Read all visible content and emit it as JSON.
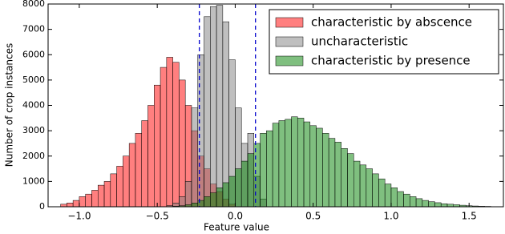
{
  "chart_data": {
    "type": "histogram",
    "xlabel": "Feature value",
    "ylabel": "Number of crop instances",
    "xlim": [
      -1.2,
      1.72
    ],
    "ylim": [
      0,
      8000
    ],
    "xticks": [
      {
        "value": -1.0,
        "label": "−1.0"
      },
      {
        "value": -0.5,
        "label": "−0.5"
      },
      {
        "value": 0.0,
        "label": "0.0"
      },
      {
        "value": 0.5,
        "label": "0.5"
      },
      {
        "value": 1.0,
        "label": "1.0"
      },
      {
        "value": 1.5,
        "label": "1.5"
      }
    ],
    "yticks": [
      0,
      1000,
      2000,
      3000,
      4000,
      5000,
      6000,
      7000,
      8000
    ],
    "alpha": 0.5,
    "legend": "upper right",
    "vlines": [
      -0.23,
      0.13
    ],
    "vline_color": "#0000cc",
    "series": [
      {
        "name": "characteristic by abscence",
        "color": "#ff0000",
        "bins": [
          -1.12,
          -1.08,
          -1.04,
          -1.0,
          -0.96,
          -0.92,
          -0.88,
          -0.84,
          -0.8,
          -0.76,
          -0.72,
          -0.68,
          -0.64,
          -0.6,
          -0.56,
          -0.52,
          -0.48,
          -0.44,
          -0.4,
          -0.36,
          -0.32,
          -0.28,
          -0.24,
          -0.2,
          -0.16,
          -0.12,
          -0.08,
          -0.04,
          0.0
        ],
        "values": [
          100,
          150,
          250,
          400,
          500,
          650,
          850,
          1000,
          1300,
          1600,
          2000,
          2500,
          2900,
          3400,
          4000,
          4800,
          5500,
          5900,
          5700,
          5000,
          4000,
          3000,
          2000,
          1500,
          900,
          600,
          300,
          100
        ]
      },
      {
        "name": "uncharacteristic",
        "color": "#808080",
        "bins": [
          -0.44,
          -0.4,
          -0.36,
          -0.32,
          -0.28,
          -0.24,
          -0.2,
          -0.16,
          -0.12,
          -0.08,
          -0.04,
          0.0,
          0.04,
          0.08,
          0.12,
          0.16,
          0.2
        ],
        "values": [
          50,
          150,
          400,
          1000,
          3900,
          6000,
          7500,
          7900,
          7950,
          7300,
          5800,
          3900,
          2500,
          2900,
          1200,
          300
        ]
      },
      {
        "name": "characteristic by presence",
        "color": "#008000",
        "bins": [
          -0.4,
          -0.36,
          -0.32,
          -0.28,
          -0.24,
          -0.2,
          -0.16,
          -0.12,
          -0.08,
          -0.04,
          0.0,
          0.04,
          0.08,
          0.12,
          0.16,
          0.2,
          0.24,
          0.28,
          0.32,
          0.36,
          0.4,
          0.44,
          0.48,
          0.52,
          0.56,
          0.6,
          0.64,
          0.68,
          0.72,
          0.76,
          0.8,
          0.84,
          0.88,
          0.92,
          0.96,
          1.0,
          1.04,
          1.08,
          1.12,
          1.16,
          1.2,
          1.24,
          1.28,
          1.32,
          1.36,
          1.4,
          1.44,
          1.48,
          1.52,
          1.56,
          1.6,
          1.64
        ],
        "values": [
          20,
          40,
          80,
          150,
          250,
          400,
          550,
          750,
          950,
          1200,
          1500,
          1800,
          2100,
          2500,
          2900,
          3000,
          3300,
          3400,
          3450,
          3550,
          3500,
          3350,
          3200,
          3100,
          2900,
          2700,
          2550,
          2300,
          2100,
          1800,
          1650,
          1500,
          1300,
          1100,
          900,
          750,
          600,
          500,
          400,
          320,
          250,
          200,
          160,
          120,
          100,
          80,
          60,
          40,
          30,
          20,
          15
        ]
      }
    ]
  }
}
